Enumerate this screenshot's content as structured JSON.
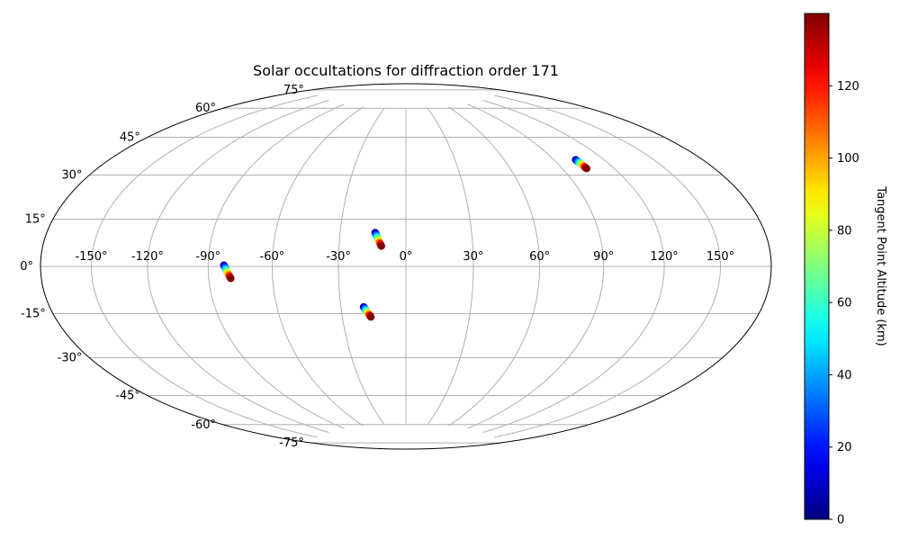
{
  "chart_data": {
    "type": "scatter",
    "projection": "hammer",
    "title": "Solar occultations for diffraction order 171",
    "grid": true,
    "longitude_ticks": [
      -150,
      -120,
      -90,
      -60,
      -30,
      0,
      30,
      60,
      90,
      120,
      150
    ],
    "longitude_tick_labels": [
      "-150°",
      "-120°",
      "-90°",
      "-60°",
      "-30°",
      "0°",
      "30°",
      "60°",
      "90°",
      "120°",
      "150°"
    ],
    "latitude_ticks": [
      -75,
      -60,
      -45,
      -30,
      -15,
      0,
      15,
      30,
      45,
      60,
      75
    ],
    "latitude_tick_labels": [
      "-75°",
      "-60°",
      "-45°",
      "-30°",
      "-15°",
      "0°",
      "15°",
      "30°",
      "45°",
      "60°",
      "75°"
    ],
    "colorbar": {
      "label": "Tangent Point Altitude (km)",
      "colormap": "jet",
      "range": [
        0,
        140
      ],
      "ticks": [
        0,
        20,
        40,
        60,
        80,
        100,
        120
      ],
      "tick_labels": [
        "0",
        "20",
        "40",
        "60",
        "80",
        "100",
        "120"
      ]
    },
    "series": [
      {
        "lon_start": -82.5,
        "lat_start": 0.5,
        "lon_end": -79.5,
        "lat_end": -5.0,
        "alt_range": [
          0,
          140
        ]
      },
      {
        "lon_start": -14.0,
        "lat_start": 15.0,
        "lon_end": -11.0,
        "lat_end": 9.0,
        "alt_range": [
          0,
          140
        ]
      },
      {
        "lon_start": -19.5,
        "lat_start": -18.0,
        "lon_end": -16.5,
        "lat_end": -22.5,
        "alt_range": [
          0,
          140
        ]
      },
      {
        "lon_start": 103.0,
        "lat_start": 44.5,
        "lon_end": 104.0,
        "lat_end": 40.5,
        "alt_range": [
          0,
          140
        ]
      }
    ]
  }
}
